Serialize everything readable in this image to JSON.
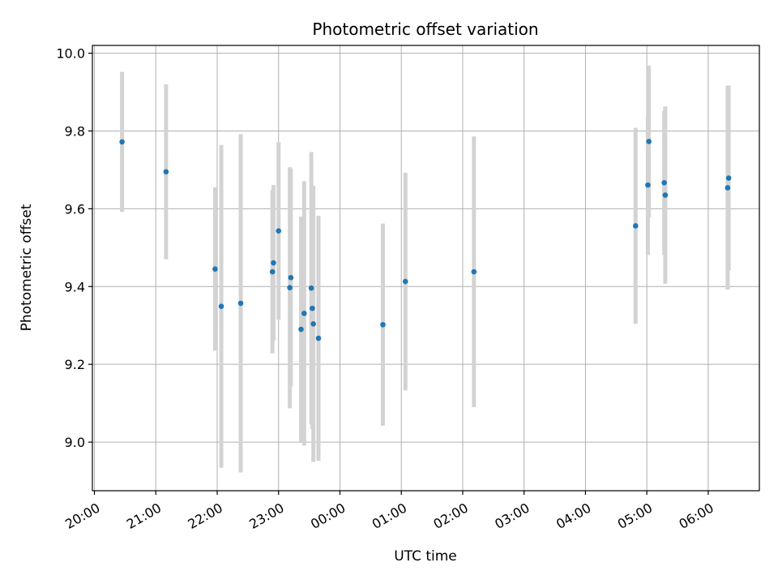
{
  "chart_data": {
    "type": "scatter",
    "title": "Photometric offset variation",
    "xlabel": "UTC time",
    "ylabel": "Photometric offset",
    "xlim": [
      "2024-01-01T19:58",
      "2024-01-02T06:50"
    ],
    "ylim": [
      8.875,
      10.02
    ],
    "grid": true,
    "x_ticks": [
      {
        "t": "2024-01-01T20:00",
        "label": "20:00"
      },
      {
        "t": "2024-01-01T21:00",
        "label": "21:00"
      },
      {
        "t": "2024-01-01T22:00",
        "label": "22:00"
      },
      {
        "t": "2024-01-01T23:00",
        "label": "23:00"
      },
      {
        "t": "2024-01-02T00:00",
        "label": "00:00"
      },
      {
        "t": "2024-01-02T01:00",
        "label": "01:00"
      },
      {
        "t": "2024-01-02T02:00",
        "label": "02:00"
      },
      {
        "t": "2024-01-02T03:00",
        "label": "03:00"
      },
      {
        "t": "2024-01-02T04:00",
        "label": "04:00"
      },
      {
        "t": "2024-01-02T05:00",
        "label": "05:00"
      },
      {
        "t": "2024-01-02T06:00",
        "label": "06:00"
      }
    ],
    "y_ticks": [
      {
        "v": 9.0,
        "label": "9.0"
      },
      {
        "v": 9.2,
        "label": "9.2"
      },
      {
        "v": 9.4,
        "label": "9.4"
      },
      {
        "v": 9.6,
        "label": "9.6"
      },
      {
        "v": 9.8,
        "label": "9.8"
      },
      {
        "v": 10.0,
        "label": "10.0"
      }
    ],
    "colors": {
      "point": "#1f77b4",
      "errorbar": "#d3d3d3",
      "grid": "#b0b0b0"
    },
    "points": [
      {
        "t": "2024-01-01T20:27",
        "y": 9.772,
        "yerr": 0.18
      },
      {
        "t": "2024-01-01T21:10",
        "y": 9.695,
        "yerr": 0.225
      },
      {
        "t": "2024-01-01T21:58",
        "y": 9.445,
        "yerr": 0.21
      },
      {
        "t": "2024-01-01T22:04",
        "y": 9.349,
        "yerr": 0.415
      },
      {
        "t": "2024-01-01T22:23",
        "y": 9.357,
        "yerr": 0.435
      },
      {
        "t": "2024-01-01T22:54",
        "y": 9.438,
        "yerr": 0.21
      },
      {
        "t": "2024-01-01T22:55",
        "y": 9.461,
        "yerr": 0.2
      },
      {
        "t": "2024-01-01T23:00",
        "y": 9.543,
        "yerr": 0.228
      },
      {
        "t": "2024-01-01T23:11",
        "y": 9.397,
        "yerr": 0.31
      },
      {
        "t": "2024-01-01T23:12",
        "y": 9.423,
        "yerr": 0.28
      },
      {
        "t": "2024-01-01T23:22",
        "y": 9.29,
        "yerr": 0.29
      },
      {
        "t": "2024-01-01T23:25",
        "y": 9.331,
        "yerr": 0.34
      },
      {
        "t": "2024-01-01T23:32",
        "y": 9.396,
        "yerr": 0.35
      },
      {
        "t": "2024-01-01T23:33",
        "y": 9.344,
        "yerr": 0.31
      },
      {
        "t": "2024-01-01T23:34",
        "y": 9.304,
        "yerr": 0.355
      },
      {
        "t": "2024-01-01T23:39",
        "y": 9.267,
        "yerr": 0.315
      },
      {
        "t": "2024-01-02T00:42",
        "y": 9.302,
        "yerr": 0.26
      },
      {
        "t": "2024-01-02T01:04",
        "y": 9.413,
        "yerr": 0.28
      },
      {
        "t": "2024-01-02T02:11",
        "y": 9.438,
        "yerr": 0.348
      },
      {
        "t": "2024-01-02T04:49",
        "y": 9.556,
        "yerr": 0.252
      },
      {
        "t": "2024-01-02T05:01",
        "y": 9.661,
        "yerr": 0.18
      },
      {
        "t": "2024-01-02T05:02",
        "y": 9.773,
        "yerr": 0.195
      },
      {
        "t": "2024-01-02T05:17",
        "y": 9.667,
        "yerr": 0.185
      },
      {
        "t": "2024-01-02T05:18",
        "y": 9.635,
        "yerr": 0.228
      },
      {
        "t": "2024-01-02T06:19",
        "y": 9.654,
        "yerr": 0.262
      },
      {
        "t": "2024-01-02T06:20",
        "y": 9.679,
        "yerr": 0.238
      }
    ]
  }
}
